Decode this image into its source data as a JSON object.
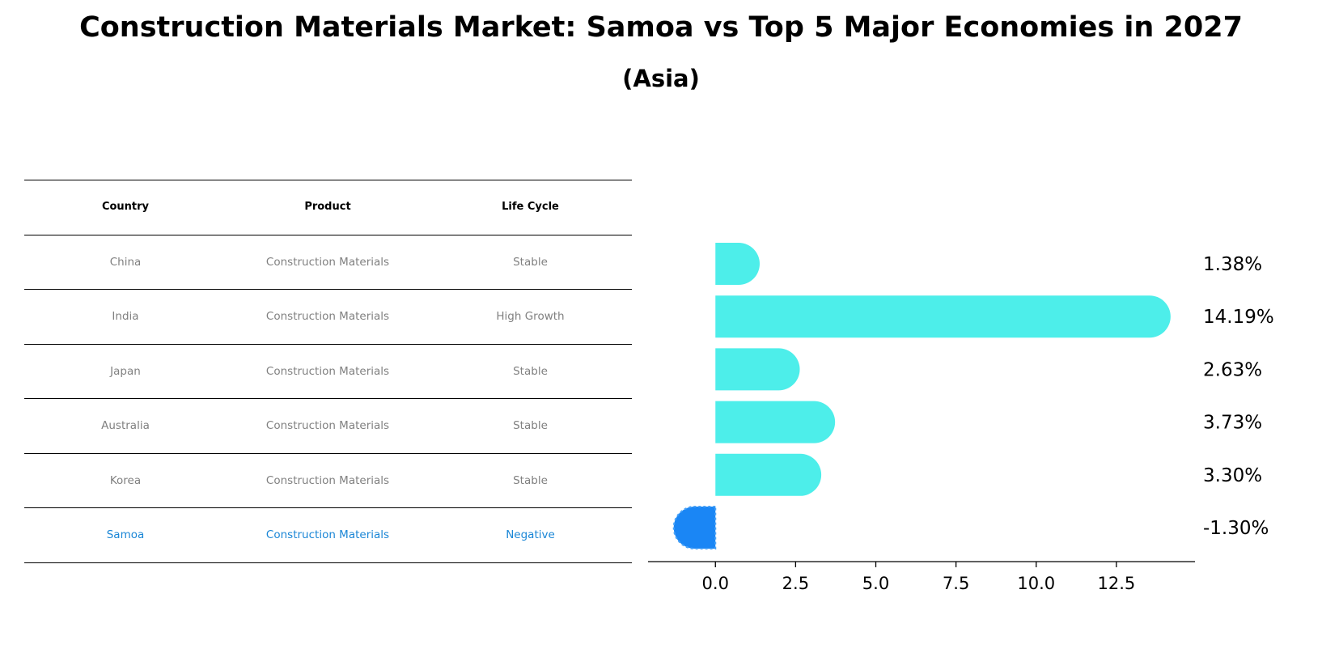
{
  "title": "Construction Materials Market: Samoa vs Top 5 Major Economies in 2027",
  "subtitle": "(Asia)",
  "table": {
    "headers": [
      "Country",
      "Product",
      "Life Cycle"
    ],
    "rows": [
      {
        "country": "China",
        "product": "Construction Materials",
        "life_cycle": "Stable"
      },
      {
        "country": "India",
        "product": "Construction Materials",
        "life_cycle": "High Growth"
      },
      {
        "country": "Japan",
        "product": "Construction Materials",
        "life_cycle": "Stable"
      },
      {
        "country": "Australia",
        "product": "Construction Materials",
        "life_cycle": "Stable"
      },
      {
        "country": "Korea",
        "product": "Construction Materials",
        "life_cycle": "Stable"
      },
      {
        "country": "Samoa",
        "product": "Construction Materials",
        "life_cycle": "Negative"
      }
    ],
    "highlight_color": "#1a86d6",
    "text_color": "#808080"
  },
  "chart_data": {
    "type": "bar",
    "orientation": "horizontal",
    "categories": [
      "China",
      "India",
      "Japan",
      "Australia",
      "Korea",
      "Samoa"
    ],
    "values": [
      1.38,
      14.19,
      2.63,
      3.73,
      3.3,
      -1.3
    ],
    "value_labels": [
      "1.38%",
      "14.19%",
      "2.63%",
      "3.73%",
      "3.30%",
      "-1.30%"
    ],
    "xlim": [
      -2.1,
      14.95
    ],
    "xticks": [
      0.0,
      2.5,
      5.0,
      7.5,
      10.0,
      12.5
    ],
    "xtick_labels": [
      "0.0",
      "2.5",
      "5.0",
      "7.5",
      "10.0",
      "12.5"
    ],
    "bar_color": "#4deeea",
    "highlight_color": "#1a86f5",
    "highlight_category": "Samoa",
    "grid": false,
    "legend": "none"
  }
}
